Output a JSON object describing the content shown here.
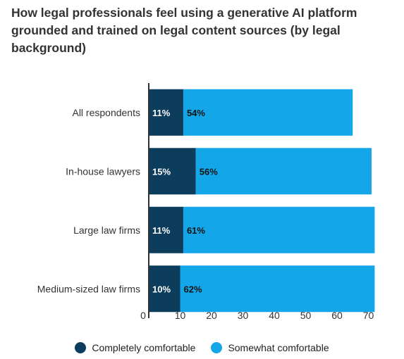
{
  "chart_data": {
    "type": "bar",
    "orientation": "horizontal",
    "stacked": true,
    "title": "How legal professionals feel using a generative AI platform grounded and trained on legal content sources (by legal background)",
    "categories": [
      "All respondents",
      "In-house lawyers",
      "Large law firms",
      "Medium-sized law firms"
    ],
    "series": [
      {
        "name": "Completely comfortable",
        "values": [
          11,
          15,
          11,
          10
        ],
        "labels": [
          "11%",
          "15%",
          "11%",
          "10%"
        ],
        "color": "#0c3d5c",
        "label_color": "#ffffff"
      },
      {
        "name": "Somewhat comfortable",
        "values": [
          54,
          56,
          61,
          62
        ],
        "labels": [
          "54%",
          "56%",
          "61%",
          "62%"
        ],
        "color": "#13a6e8",
        "label_color": "#111111"
      }
    ],
    "xlim": [
      0,
      72
    ],
    "xticks": [
      0,
      10,
      20,
      30,
      40,
      50,
      60,
      70
    ],
    "legend_position": "bottom",
    "grid": false
  }
}
